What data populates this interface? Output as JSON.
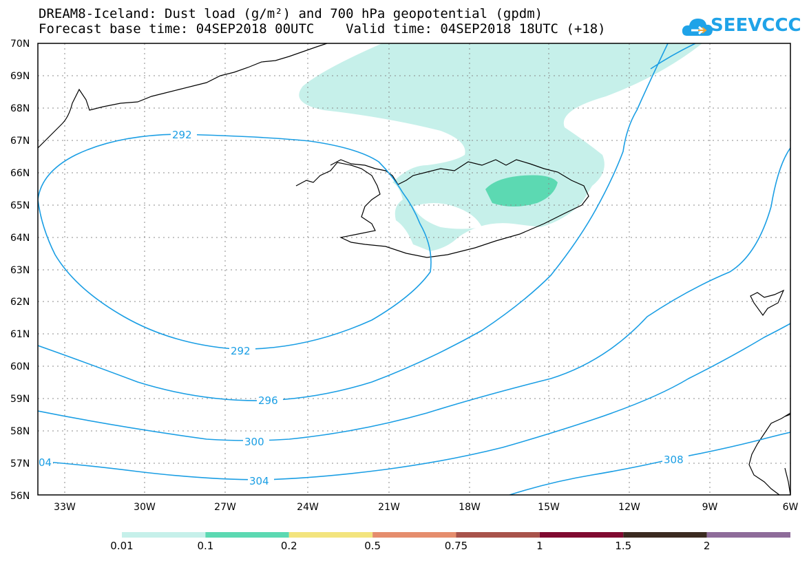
{
  "header": {
    "title_line1": "DREAM8-Iceland: Dust load (g/m²) and 700 hPa geopotential (gpdm)",
    "title_line2": "Forecast base time: 04SEP2018 00UTC    Valid time: 04SEP2018 18UTC (+18)",
    "logo_text": "SEEVCCC",
    "logo_icon": "cloud-arrow-icon",
    "logo_color": "#1fa3e8"
  },
  "map": {
    "lat_range": [
      56,
      70
    ],
    "lon_range": [
      -34.2,
      -6
    ],
    "lat_labels": [
      "70N",
      "69N",
      "68N",
      "67N",
      "66N",
      "65N",
      "64N",
      "63N",
      "62N",
      "61N",
      "60N",
      "59N",
      "58N",
      "57N",
      "56N"
    ],
    "lon_labels": [
      "33W",
      "30W",
      "27W",
      "24W",
      "21W",
      "18W",
      "15W",
      "12W",
      "9W",
      "6W"
    ],
    "coastline_color": "#000000",
    "contour_color": "#1a9ee4",
    "contour_labels": [
      {
        "text": "292"
      },
      {
        "text": "292"
      },
      {
        "text": "296"
      },
      {
        "text": "300"
      },
      {
        "text": "304"
      },
      {
        "text": "04"
      },
      {
        "text": "308"
      }
    ],
    "dust_colors": {
      "low": "#c6f0ea",
      "mid": "#5cd9b2"
    }
  },
  "legend": {
    "colors": [
      "#c6f0ea",
      "#5cd9b2",
      "#f3e47e",
      "#e58d6d",
      "#a8534b",
      "#800a31",
      "#3b2b21",
      "#8e6c9a"
    ],
    "labels": [
      "0.01",
      "0.1",
      "0.2",
      "0.5",
      "0.75",
      "1",
      "1.5",
      "2"
    ]
  }
}
